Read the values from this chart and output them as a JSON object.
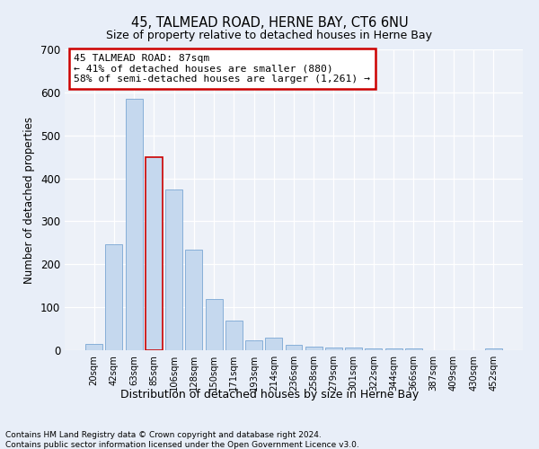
{
  "title": "45, TALMEAD ROAD, HERNE BAY, CT6 6NU",
  "subtitle": "Size of property relative to detached houses in Herne Bay",
  "xlabel": "Distribution of detached houses by size in Herne Bay",
  "ylabel": "Number of detached properties",
  "categories": [
    "20sqm",
    "42sqm",
    "63sqm",
    "85sqm",
    "106sqm",
    "128sqm",
    "150sqm",
    "171sqm",
    "193sqm",
    "214sqm",
    "236sqm",
    "258sqm",
    "279sqm",
    "301sqm",
    "322sqm",
    "344sqm",
    "366sqm",
    "387sqm",
    "409sqm",
    "430sqm",
    "452sqm"
  ],
  "values": [
    15,
    247,
    585,
    450,
    375,
    235,
    120,
    68,
    22,
    30,
    12,
    9,
    7,
    7,
    5,
    4,
    4,
    0,
    0,
    0,
    5
  ],
  "bar_color": "#c5d8ee",
  "bar_edge_color": "#7aa6d4",
  "highlight_bar_index": 3,
  "highlight_edge_color": "#cc0000",
  "annotation_title": "45 TALMEAD ROAD: 87sqm",
  "annotation_line2": "← 41% of detached houses are smaller (880)",
  "annotation_line3": "58% of semi-detached houses are larger (1,261) →",
  "annotation_box_color": "#ffffff",
  "annotation_box_edge": "#cc0000",
  "ylim": [
    0,
    700
  ],
  "yticks": [
    0,
    100,
    200,
    300,
    400,
    500,
    600,
    700
  ],
  "footer1": "Contains HM Land Registry data © Crown copyright and database right 2024.",
  "footer2": "Contains public sector information licensed under the Open Government Licence v3.0.",
  "bg_color": "#e8eef8",
  "plot_bg_color": "#edf1f8"
}
